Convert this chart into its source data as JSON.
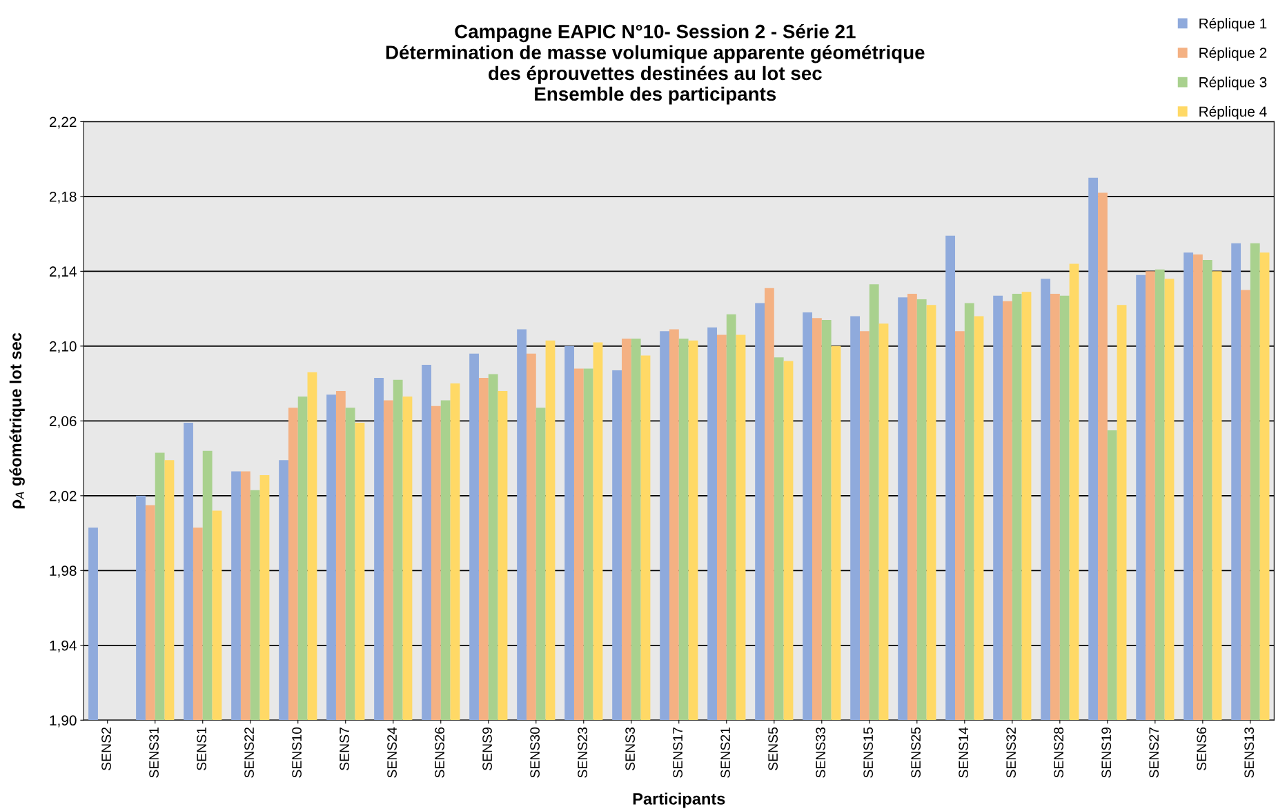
{
  "chart_data": {
    "type": "bar",
    "title": "Campagne EAPIC N°10- Session 2 - Série 21\nDétermination de masse volumique apparente géométrique\ndes éprouvettes destinées au lot sec\nEnsemble des participants",
    "xlabel": "Participants",
    "ylabel": "ρ$_{A}$ géométrique lot sec",
    "categories": [
      "SENS2",
      "SENS31",
      "SENS1",
      "SENS22",
      "SENS10",
      "SENS7",
      "SENS24",
      "SENS26",
      "SENS9",
      "SENS30",
      "SENS23",
      "SENS3",
      "SENS17",
      "SENS21",
      "SENS5",
      "SENS33",
      "SENS15",
      "SENS25",
      "SENS14",
      "SENS32",
      "SENS28",
      "SENS19",
      "SENS27",
      "SENS6",
      "SENS13"
    ],
    "series": [
      {
        "name": "Réplique 1",
        "color": "#8faadc",
        "values": [
          2.003,
          2.02,
          2.059,
          2.033,
          2.039,
          2.074,
          2.083,
          2.09,
          2.096,
          2.109,
          2.1,
          2.087,
          2.108,
          2.11,
          2.123,
          2.118,
          2.116,
          2.126,
          2.159,
          2.127,
          2.136,
          2.19,
          2.138,
          2.15,
          2.155
        ]
      },
      {
        "name": "Réplique 2",
        "color": "#f4b183",
        "values": [
          null,
          2.015,
          2.003,
          2.033,
          2.067,
          2.076,
          2.071,
          2.068,
          2.083,
          2.096,
          2.088,
          2.104,
          2.109,
          2.106,
          2.131,
          2.115,
          2.108,
          2.128,
          2.108,
          2.124,
          2.128,
          2.182,
          2.14,
          2.149,
          2.13
        ]
      },
      {
        "name": "Réplique 3",
        "color": "#a9d18e",
        "values": [
          null,
          2.043,
          2.044,
          2.023,
          2.073,
          2.067,
          2.082,
          2.071,
          2.085,
          2.067,
          2.088,
          2.104,
          2.104,
          2.117,
          2.094,
          2.114,
          2.133,
          2.125,
          2.123,
          2.128,
          2.127,
          2.055,
          2.141,
          2.146,
          2.155
        ]
      },
      {
        "name": "Réplique 4",
        "color": "#ffd966",
        "values": [
          null,
          2.039,
          2.012,
          2.031,
          2.086,
          2.059,
          2.073,
          2.08,
          2.076,
          2.103,
          2.102,
          2.095,
          2.103,
          2.106,
          2.092,
          2.1,
          2.112,
          2.122,
          2.116,
          2.129,
          2.144,
          2.122,
          2.136,
          2.14,
          2.15
        ]
      }
    ],
    "ylim": [
      1.9,
      2.22
    ],
    "yticks": [
      {
        "value": 1.9,
        "label": "1,90"
      },
      {
        "value": 1.94,
        "label": "1,94"
      },
      {
        "value": 1.98,
        "label": "1,98"
      },
      {
        "value": 2.02,
        "label": "2,02"
      },
      {
        "value": 2.06,
        "label": "2,06"
      },
      {
        "value": 2.1,
        "label": "2,10"
      },
      {
        "value": 2.14,
        "label": "2,14"
      },
      {
        "value": 2.18,
        "label": "2,18"
      },
      {
        "value": 2.22,
        "label": "2,22"
      }
    ],
    "grid": "y",
    "legend": "top right"
  }
}
